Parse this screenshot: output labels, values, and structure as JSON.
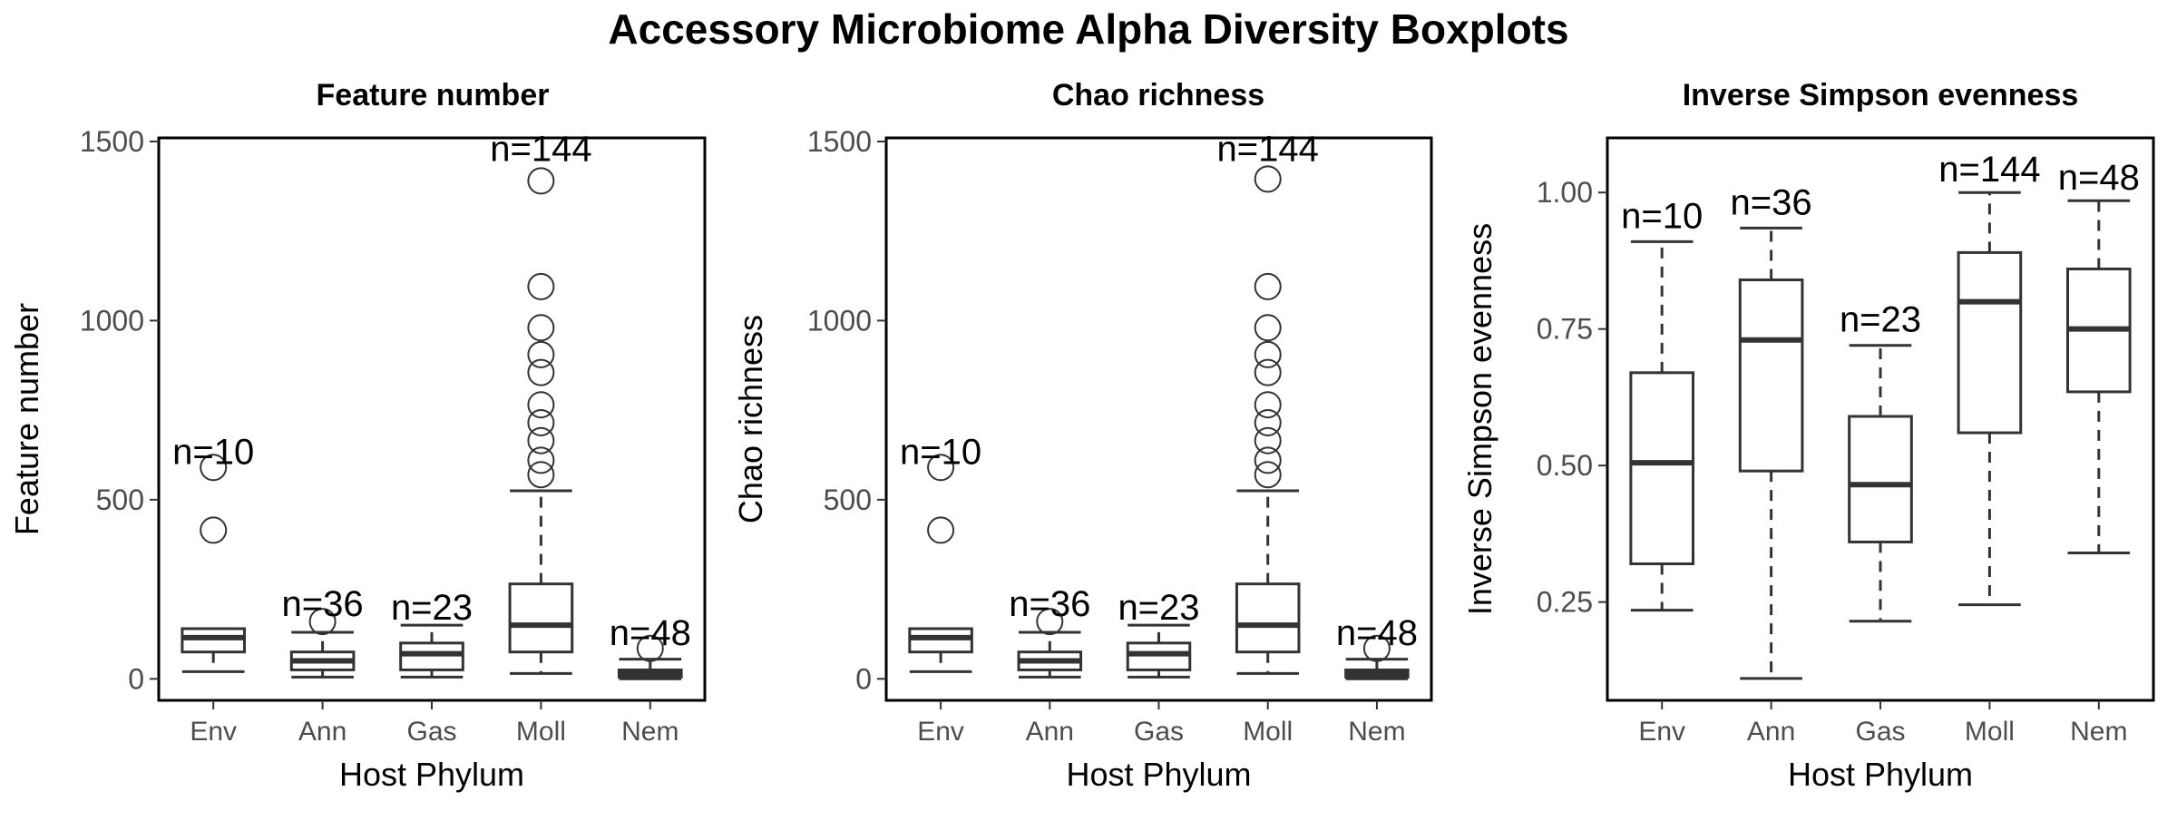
{
  "figure_title": "Accessory Microbiome Alpha Diversity Boxplots",
  "chart_data": [
    {
      "type": "box",
      "title": "Feature number",
      "xlabel": "Host Phylum",
      "ylabel": "Feature number",
      "categories": [
        "Env",
        "Ann",
        "Gas",
        "Moll",
        "Nem"
      ],
      "ylim": [
        -60,
        1510
      ],
      "yticks": [
        0,
        500,
        1000,
        1500
      ],
      "ytick_labels": [
        "0",
        "500",
        "1000",
        "1500"
      ],
      "boxes": [
        {
          "whisker_low": 20,
          "q1": 75,
          "median": 115,
          "q3": 140,
          "whisker_high": 140,
          "outliers": [
            415,
            590
          ],
          "count_label": "n=10",
          "count_label_y": 600
        },
        {
          "whisker_low": 5,
          "q1": 25,
          "median": 50,
          "q3": 75,
          "whisker_high": 130,
          "outliers": [
            160
          ],
          "count_label": "n=36",
          "count_label_y": 175
        },
        {
          "whisker_low": 5,
          "q1": 25,
          "median": 70,
          "q3": 100,
          "whisker_high": 150,
          "outliers": [],
          "count_label": "n=23",
          "count_label_y": 165
        },
        {
          "whisker_low": 15,
          "q1": 75,
          "median": 150,
          "q3": 265,
          "whisker_high": 525,
          "outliers": [
            570,
            610,
            665,
            715,
            765,
            855,
            905,
            980,
            1095,
            1390
          ],
          "count_label": "n=144",
          "count_label_y": 1445
        },
        {
          "whisker_low": 0,
          "q1": 5,
          "median": 15,
          "q3": 25,
          "whisker_high": 55,
          "outliers": [
            85
          ],
          "count_label": "n=48",
          "count_label_y": 95
        }
      ]
    },
    {
      "type": "box",
      "title": "Chao richness",
      "xlabel": "Host Phylum",
      "ylabel": "Chao richness",
      "categories": [
        "Env",
        "Ann",
        "Gas",
        "Moll",
        "Nem"
      ],
      "ylim": [
        -60,
        1510
      ],
      "yticks": [
        0,
        500,
        1000,
        1500
      ],
      "ytick_labels": [
        "0",
        "500",
        "1000",
        "1500"
      ],
      "boxes": [
        {
          "whisker_low": 20,
          "q1": 75,
          "median": 115,
          "q3": 140,
          "whisker_high": 140,
          "outliers": [
            415,
            590
          ],
          "count_label": "n=10",
          "count_label_y": 600
        },
        {
          "whisker_low": 5,
          "q1": 25,
          "median": 50,
          "q3": 75,
          "whisker_high": 130,
          "outliers": [
            160
          ],
          "count_label": "n=36",
          "count_label_y": 175
        },
        {
          "whisker_low": 5,
          "q1": 25,
          "median": 70,
          "q3": 100,
          "whisker_high": 150,
          "outliers": [],
          "count_label": "n=23",
          "count_label_y": 165
        },
        {
          "whisker_low": 15,
          "q1": 75,
          "median": 150,
          "q3": 265,
          "whisker_high": 525,
          "outliers": [
            570,
            610,
            665,
            715,
            765,
            855,
            905,
            980,
            1095,
            1395
          ],
          "count_label": "n=144",
          "count_label_y": 1445
        },
        {
          "whisker_low": 0,
          "q1": 5,
          "median": 15,
          "q3": 25,
          "whisker_high": 55,
          "outliers": [
            85
          ],
          "count_label": "n=48",
          "count_label_y": 95
        }
      ]
    },
    {
      "type": "box",
      "title": "Inverse Simpson evenness",
      "xlabel": "Host Phylum",
      "ylabel": "Inverse Simpson evenness",
      "categories": [
        "Env",
        "Ann",
        "Gas",
        "Moll",
        "Nem"
      ],
      "ylim": [
        0.07,
        1.1
      ],
      "yticks": [
        0.25,
        0.5,
        0.75,
        1.0
      ],
      "ytick_labels": [
        "0.25",
        "0.50",
        "0.75",
        "1.00"
      ],
      "boxes": [
        {
          "whisker_low": 0.235,
          "q1": 0.32,
          "median": 0.505,
          "q3": 0.67,
          "whisker_high": 0.91,
          "outliers": [],
          "count_label": "n=10",
          "count_label_y": 0.935
        },
        {
          "whisker_low": 0.11,
          "q1": 0.49,
          "median": 0.73,
          "q3": 0.84,
          "whisker_high": 0.935,
          "outliers": [],
          "count_label": "n=36",
          "count_label_y": 0.96
        },
        {
          "whisker_low": 0.215,
          "q1": 0.36,
          "median": 0.465,
          "q3": 0.59,
          "whisker_high": 0.72,
          "outliers": [],
          "count_label": "n=23",
          "count_label_y": 0.745
        },
        {
          "whisker_low": 0.245,
          "q1": 0.56,
          "median": 0.8,
          "q3": 0.89,
          "whisker_high": 1.0,
          "outliers": [],
          "count_label": "n=144",
          "count_label_y": 1.02
        },
        {
          "whisker_low": 0.34,
          "q1": 0.635,
          "median": 0.75,
          "q3": 0.86,
          "whisker_high": 0.985,
          "outliers": [],
          "count_label": "n=48",
          "count_label_y": 1.005
        }
      ]
    }
  ]
}
